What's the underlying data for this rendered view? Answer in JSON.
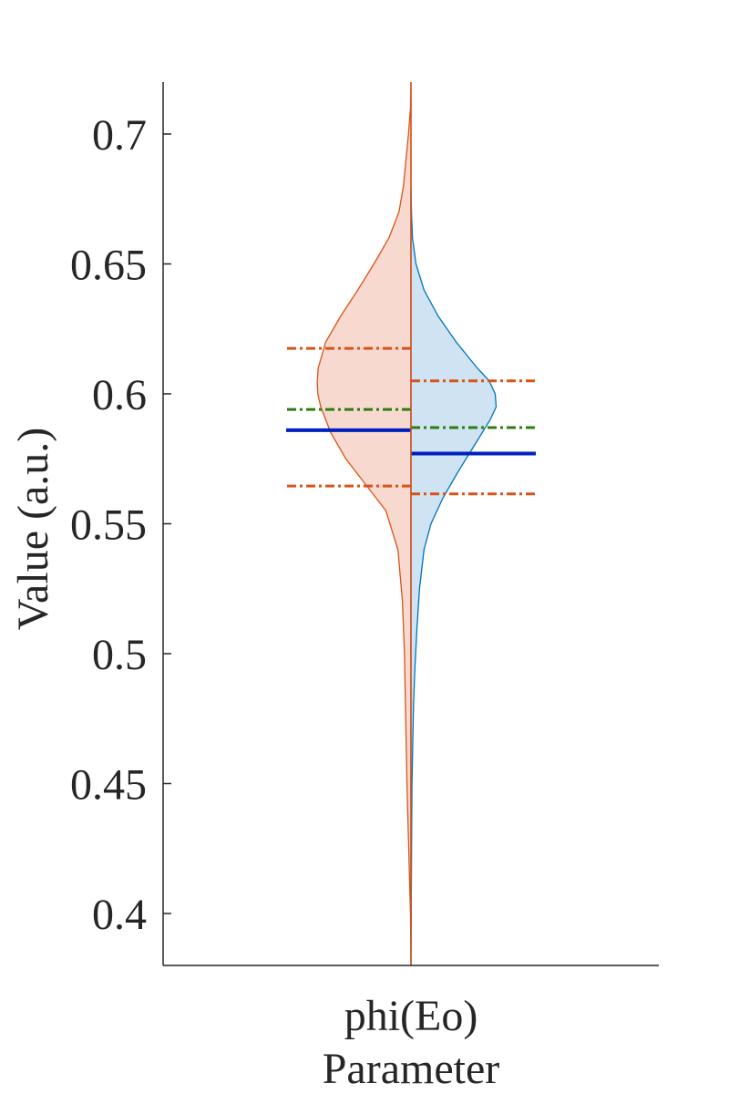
{
  "chart_data": {
    "type": "violin",
    "ylabel": "Value (a.u.)",
    "xlabel": "Parameter",
    "categories": [
      "phi(Eo)"
    ],
    "ylim": [
      0.38,
      0.72
    ],
    "yticks": [
      0.4,
      0.45,
      0.5,
      0.55,
      0.6,
      0.65,
      0.7
    ],
    "ytick_labels": [
      "0.4",
      "0.45",
      "0.5",
      "0.55",
      "0.6",
      "0.65",
      "0.7"
    ],
    "grid": false,
    "legend": "none",
    "series": [
      {
        "side": "left",
        "fill_color": "#f7d9cf",
        "edge_color": "#d95319",
        "mean": 0.586,
        "median": 0.594,
        "lower_quantile": 0.5645,
        "upper_quantile": 0.6175,
        "density": [
          [
            0.38,
            0.0
          ],
          [
            0.4,
            0.005
          ],
          [
            0.45,
            0.04
          ],
          [
            0.48,
            0.055
          ],
          [
            0.5,
            0.065
          ],
          [
            0.52,
            0.085
          ],
          [
            0.54,
            0.13
          ],
          [
            0.555,
            0.25
          ],
          [
            0.565,
            0.45
          ],
          [
            0.575,
            0.65
          ],
          [
            0.585,
            0.8
          ],
          [
            0.595,
            0.9
          ],
          [
            0.6,
            0.93
          ],
          [
            0.605,
            0.935
          ],
          [
            0.61,
            0.925
          ],
          [
            0.62,
            0.85
          ],
          [
            0.63,
            0.7
          ],
          [
            0.64,
            0.53
          ],
          [
            0.65,
            0.37
          ],
          [
            0.66,
            0.22
          ],
          [
            0.67,
            0.12
          ],
          [
            0.68,
            0.075
          ],
          [
            0.69,
            0.05
          ],
          [
            0.7,
            0.025
          ],
          [
            0.71,
            0.005
          ],
          [
            0.72,
            0.0
          ]
        ]
      },
      {
        "side": "right",
        "fill_color": "#cfe3f2",
        "edge_color": "#0072bd",
        "mean": 0.577,
        "median": 0.587,
        "lower_quantile": 0.5615,
        "upper_quantile": 0.605,
        "density": [
          [
            0.38,
            0.0
          ],
          [
            0.42,
            0.005
          ],
          [
            0.45,
            0.01
          ],
          [
            0.48,
            0.025
          ],
          [
            0.495,
            0.04
          ],
          [
            0.51,
            0.06
          ],
          [
            0.525,
            0.085
          ],
          [
            0.54,
            0.13
          ],
          [
            0.55,
            0.2
          ],
          [
            0.56,
            0.32
          ],
          [
            0.57,
            0.47
          ],
          [
            0.58,
            0.63
          ],
          [
            0.59,
            0.79
          ],
          [
            0.595,
            0.85
          ],
          [
            0.6,
            0.84
          ],
          [
            0.605,
            0.78
          ],
          [
            0.61,
            0.66
          ],
          [
            0.62,
            0.45
          ],
          [
            0.63,
            0.27
          ],
          [
            0.64,
            0.13
          ],
          [
            0.65,
            0.05
          ],
          [
            0.66,
            0.015
          ],
          [
            0.67,
            0.005
          ],
          [
            0.68,
            0.0
          ]
        ]
      }
    ],
    "line_colors": {
      "mean": "#0020c0",
      "median": "#2e7d10",
      "quantile": "#d95319"
    }
  }
}
